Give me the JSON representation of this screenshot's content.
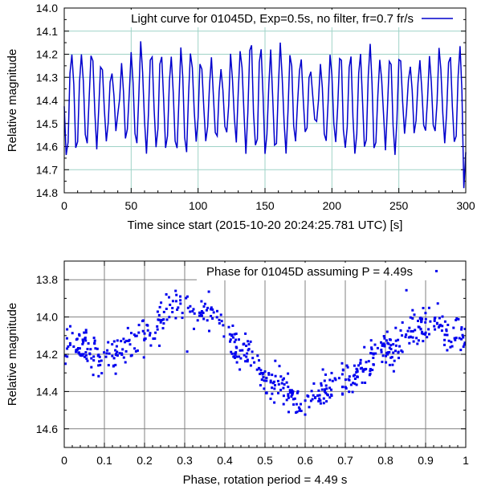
{
  "chart_data": [
    {
      "type": "line",
      "title": "Light curve for 01045D, Exp=0.5s, no filter, fr=0.7 fr/s",
      "xlabel": "Time since start (2015-10-20 20:24:25.781 UTC) [s]",
      "ylabel": "Relative magnitude",
      "xlim": [
        0,
        300
      ],
      "ylim": [
        14.8,
        14.0
      ],
      "y_inverted": true,
      "grid": true,
      "legend_position": "top",
      "series_color": "#0000cc",
      "x_ticks": [
        "0",
        "50",
        "100",
        "150",
        "200",
        "250",
        "300"
      ],
      "x_tick_values": [
        0,
        50,
        100,
        150,
        200,
        250,
        300
      ],
      "y_ticks": [
        "14.0",
        "14.1",
        "14.2",
        "14.3",
        "14.4",
        "14.5",
        "14.6",
        "14.7",
        "14.8"
      ],
      "y_tick_values": [
        14.0,
        14.1,
        14.2,
        14.3,
        14.4,
        14.5,
        14.6,
        14.7,
        14.8
      ],
      "series": [
        {
          "name": "Light curve for 01045D, Exp=0.5s, no filter, fr=0.7 fr/s",
          "rotation_period_s": 4.49,
          "cadence_s": 1.43,
          "points_approx": 210,
          "typical_range": [
            14.15,
            14.72
          ],
          "mean": 14.4
        }
      ]
    },
    {
      "type": "scatter",
      "title": "Phase for 01045D assuming P = 4.49s",
      "xlabel": "Phase, rotation period = 4.49 s",
      "ylabel": "Relative magnitude",
      "xlim": [
        0,
        1
      ],
      "ylim": [
        14.7,
        13.7
      ],
      "y_inverted": true,
      "grid": true,
      "series_color": "#0000ee",
      "x_ticks": [
        "0",
        "0.1",
        "0.2",
        "0.3",
        "0.4",
        "0.5",
        "0.6",
        "0.7",
        "0.8",
        "0.9",
        "1"
      ],
      "x_tick_values": [
        0,
        0.1,
        0.2,
        0.3,
        0.4,
        0.5,
        0.6,
        0.7,
        0.8,
        0.9,
        1.0
      ],
      "y_ticks": [
        "13.8",
        "14.0",
        "14.2",
        "14.4",
        "14.6"
      ],
      "y_tick_values": [
        13.8,
        14.0,
        14.2,
        14.4,
        14.6
      ],
      "series": [
        {
          "name": "Phase for 01045D assuming P = 4.49s",
          "trend_phase": [
            0.0,
            0.1,
            0.2,
            0.28,
            0.35,
            0.45,
            0.52,
            0.6,
            0.7,
            0.8,
            0.9,
            1.0
          ],
          "trend_mag": [
            14.12,
            14.22,
            14.1,
            13.94,
            13.98,
            14.18,
            14.38,
            14.46,
            14.34,
            14.18,
            14.04,
            14.1
          ],
          "points_approx": 600
        }
      ]
    }
  ]
}
